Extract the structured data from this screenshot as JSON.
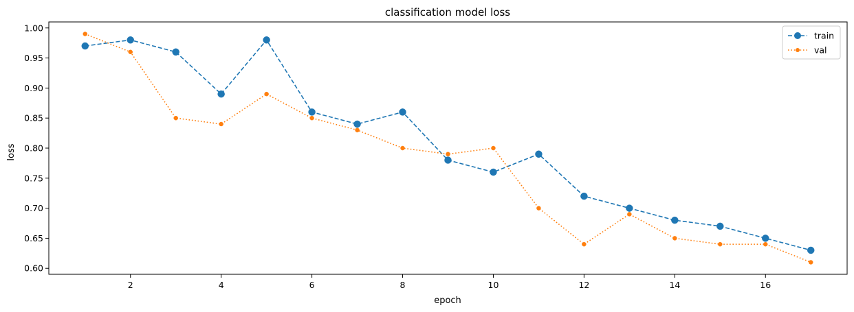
{
  "chart_data": {
    "type": "line",
    "title": "classification model loss",
    "xlabel": "epoch",
    "ylabel": "loss",
    "x": [
      1,
      2,
      3,
      4,
      5,
      6,
      7,
      8,
      9,
      10,
      11,
      12,
      13,
      14,
      15,
      16,
      17
    ],
    "xlim": [
      0.2,
      17.8
    ],
    "ylim": [
      0.59,
      1.01
    ],
    "x_ticks": [
      2,
      4,
      6,
      8,
      10,
      12,
      14,
      16
    ],
    "y_ticks": [
      0.6,
      0.65,
      0.7,
      0.75,
      0.8,
      0.85,
      0.9,
      0.95,
      1.0
    ],
    "grid": false,
    "legend_position": "top-right",
    "series": [
      {
        "name": "train",
        "color": "#1f77b4",
        "line_style": "dashed",
        "marker": "circle-large",
        "values": [
          0.97,
          0.98,
          0.96,
          0.89,
          0.98,
          0.86,
          0.84,
          0.86,
          0.78,
          0.76,
          0.79,
          0.72,
          0.7,
          0.68,
          0.67,
          0.65,
          0.63
        ]
      },
      {
        "name": "val",
        "color": "#ff7f0e",
        "line_style": "dotted",
        "marker": "circle-small",
        "values": [
          0.99,
          0.96,
          0.85,
          0.84,
          0.89,
          0.85,
          0.83,
          0.8,
          0.79,
          0.8,
          0.7,
          0.64,
          0.69,
          0.65,
          0.64,
          0.64,
          0.61
        ]
      }
    ]
  }
}
